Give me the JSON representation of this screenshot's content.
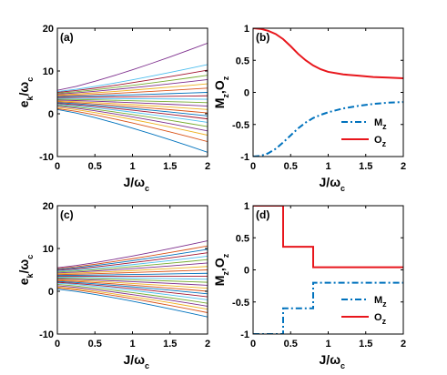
{
  "chart_data": [
    {
      "type": "line",
      "panel_label": "(a)",
      "xlim": [
        0,
        2
      ],
      "ylim": [
        -10,
        20
      ],
      "xticks": [
        "0",
        "0.5",
        "1",
        "1.5",
        "2"
      ],
      "yticks": [
        "-10",
        "0",
        "10",
        "20"
      ],
      "xlabel_main": "J",
      "xlabel_sub": "ω",
      "xlabel_subsub": "c",
      "ylabel_main": "e",
      "ylabel_sub": "k",
      "ylabel_den": "ω",
      "ylabel_densub": "c",
      "x": [
        0,
        0.25,
        0.5,
        0.75,
        1,
        1.25,
        1.5,
        1.75,
        2
      ],
      "series": [
        {
          "color": "#0072BD",
          "y0": 1.0,
          "y2": -9.0
        },
        {
          "color": "#D95319",
          "y0": 1.2,
          "y2": -6.5
        },
        {
          "color": "#EDB120",
          "y0": 1.5,
          "y2": -5.0
        },
        {
          "color": "#7E2F8E",
          "y0": 1.8,
          "y2": -4.0
        },
        {
          "color": "#77AC30",
          "y0": 2.0,
          "y2": -3.0
        },
        {
          "color": "#4DBEEE",
          "y0": 2.2,
          "y2": -2.0
        },
        {
          "color": "#A2142F",
          "y0": 2.4,
          "y2": -1.2
        },
        {
          "color": "#0072BD",
          "y0": 2.6,
          "y2": -0.5
        },
        {
          "color": "#D95319",
          "y0": 2.8,
          "y2": 0.2
        },
        {
          "color": "#EDB120",
          "y0": 3.0,
          "y2": 1.0
        },
        {
          "color": "#7E2F8E",
          "y0": 3.2,
          "y2": 1.8
        },
        {
          "color": "#77AC30",
          "y0": 3.4,
          "y2": 2.6
        },
        {
          "color": "#4DBEEE",
          "y0": 3.6,
          "y2": 3.4
        },
        {
          "color": "#A2142F",
          "y0": 3.8,
          "y2": 4.2
        },
        {
          "color": "#0072BD",
          "y0": 4.0,
          "y2": 5.0
        },
        {
          "color": "#D95319",
          "y0": 4.2,
          "y2": 6.0
        },
        {
          "color": "#EDB120",
          "y0": 4.4,
          "y2": 7.0
        },
        {
          "color": "#7E2F8E",
          "y0": 4.6,
          "y2": 8.0
        },
        {
          "color": "#77AC30",
          "y0": 4.8,
          "y2": 9.0
        },
        {
          "color": "#A2142F",
          "y0": 5.0,
          "y2": 10.2
        },
        {
          "color": "#4DBEEE",
          "y0": 5.2,
          "y2": 11.5
        },
        {
          "color": "#7E2F8E",
          "y0": 5.5,
          "y2": 16.5
        }
      ]
    },
    {
      "type": "line",
      "panel_label": "(b)",
      "xlim": [
        0,
        2
      ],
      "ylim": [
        -1,
        1
      ],
      "xticks": [
        "0",
        "0.5",
        "1",
        "1.5",
        "2"
      ],
      "yticks": [
        "-1",
        "-0.5",
        "0",
        "0.5",
        "1"
      ],
      "xlabel_main": "J",
      "xlabel_sub": "ω",
      "xlabel_subsub": "c",
      "ylabel": "M",
      "ylabel_sub1": "z",
      "ylabel_mid": ",O",
      "ylabel_sub2": "z",
      "legend_position": "bottom-right",
      "x": [
        0,
        0.1,
        0.2,
        0.3,
        0.4,
        0.5,
        0.6,
        0.7,
        0.8,
        0.9,
        1.0,
        1.2,
        1.4,
        1.6,
        1.8,
        2.0
      ],
      "series": [
        {
          "name": "M",
          "name_sub": "z",
          "color": "#0072BD",
          "dash": "dashdot",
          "values": [
            -1.0,
            -0.99,
            -0.95,
            -0.88,
            -0.78,
            -0.67,
            -0.56,
            -0.47,
            -0.4,
            -0.35,
            -0.31,
            -0.25,
            -0.21,
            -0.18,
            -0.16,
            -0.15
          ]
        },
        {
          "name": "O",
          "name_sub": "z",
          "color": "#E8161C",
          "dash": "solid",
          "values": [
            1.0,
            0.99,
            0.96,
            0.91,
            0.83,
            0.72,
            0.6,
            0.5,
            0.42,
            0.36,
            0.32,
            0.28,
            0.26,
            0.24,
            0.23,
            0.22
          ]
        }
      ]
    },
    {
      "type": "line",
      "panel_label": "(c)",
      "xlim": [
        0,
        2
      ],
      "ylim": [
        -10,
        20
      ],
      "xticks": [
        "0",
        "0.5",
        "1",
        "1.5",
        "2"
      ],
      "yticks": [
        "-10",
        "0",
        "10",
        "20"
      ],
      "xlabel_main": "J",
      "xlabel_sub": "ω",
      "xlabel_subsub": "c",
      "ylabel_main": "e",
      "ylabel_sub": "k",
      "ylabel_den": "ω",
      "ylabel_densub": "c",
      "x": [
        0,
        0.25,
        0.5,
        0.75,
        1,
        1.25,
        1.5,
        1.75,
        2
      ],
      "series": [
        {
          "color": "#0072BD",
          "y0": 0.5,
          "y2": -6.0
        },
        {
          "color": "#D95319",
          "y0": 0.8,
          "y2": -5.0
        },
        {
          "color": "#EDB120",
          "y0": 1.0,
          "y2": -4.2
        },
        {
          "color": "#7E2F8E",
          "y0": 1.3,
          "y2": -3.5
        },
        {
          "color": "#77AC30",
          "y0": 1.6,
          "y2": -2.8
        },
        {
          "color": "#4DBEEE",
          "y0": 1.9,
          "y2": -2.0
        },
        {
          "color": "#A2142F",
          "y0": 2.1,
          "y2": -1.3
        },
        {
          "color": "#0072BD",
          "y0": 2.3,
          "y2": -0.6
        },
        {
          "color": "#D95319",
          "y0": 2.5,
          "y2": 0.0
        },
        {
          "color": "#EDB120",
          "y0": 2.7,
          "y2": 0.7
        },
        {
          "color": "#7E2F8E",
          "y0": 2.9,
          "y2": 1.4
        },
        {
          "color": "#77AC30",
          "y0": 3.1,
          "y2": 2.1
        },
        {
          "color": "#4DBEEE",
          "y0": 3.3,
          "y2": 2.8
        },
        {
          "color": "#A2142F",
          "y0": 3.5,
          "y2": 3.5
        },
        {
          "color": "#0072BD",
          "y0": 3.7,
          "y2": 4.2
        },
        {
          "color": "#D95319",
          "y0": 3.9,
          "y2": 5.0
        },
        {
          "color": "#EDB120",
          "y0": 4.1,
          "y2": 5.8
        },
        {
          "color": "#7E2F8E",
          "y0": 4.3,
          "y2": 6.6
        },
        {
          "color": "#77AC30",
          "y0": 4.5,
          "y2": 7.4
        },
        {
          "color": "#4DBEEE",
          "y0": 4.7,
          "y2": 8.2
        },
        {
          "color": "#A2142F",
          "y0": 4.9,
          "y2": 9.0
        },
        {
          "color": "#0072BD",
          "y0": 5.1,
          "y2": 9.8
        },
        {
          "color": "#D95319",
          "y0": 5.3,
          "y2": 10.6
        },
        {
          "color": "#7E2F8E",
          "y0": 5.5,
          "y2": 11.8
        }
      ]
    },
    {
      "type": "line",
      "panel_label": "(d)",
      "xlim": [
        0,
        2
      ],
      "ylim": [
        -1,
        1
      ],
      "xticks": [
        "0",
        "0.5",
        "1",
        "1.5",
        "2"
      ],
      "yticks": [
        "-1",
        "-0.5",
        "0",
        "0.5",
        "1"
      ],
      "xlabel_main": "J",
      "xlabel_sub": "ω",
      "xlabel_subsub": "c",
      "ylabel": "M",
      "ylabel_sub1": "z",
      "ylabel_mid": ",O",
      "ylabel_sub2": "z",
      "legend_position": "bottom-right",
      "series": [
        {
          "name": "M",
          "name_sub": "z",
          "color": "#0072BD",
          "dash": "dashdot",
          "x": [
            0,
            0.4,
            0.4,
            0.8,
            0.8,
            2.0
          ],
          "values": [
            -1.0,
            -1.0,
            -0.6,
            -0.6,
            -0.2,
            -0.2
          ]
        },
        {
          "name": "O",
          "name_sub": "z",
          "color": "#E8161C",
          "dash": "solid",
          "x": [
            0,
            0.4,
            0.4,
            0.8,
            0.8,
            2.0
          ],
          "values": [
            1.0,
            1.0,
            0.36,
            0.36,
            0.04,
            0.04
          ]
        }
      ]
    }
  ]
}
